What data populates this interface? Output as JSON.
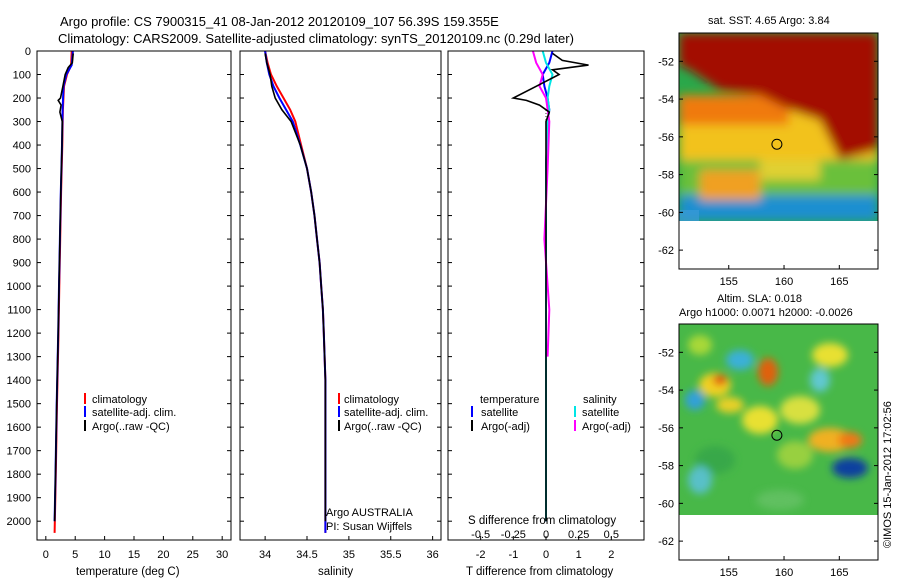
{
  "header": {
    "line1": "Argo profile: CS 7900315_41 08-Jan-2012 20120109_107 56.39S 159.355E",
    "line2": "Climatology: CARS2009. Satellite-adjusted climatology: synTS_20120109.nc (0.29d later)"
  },
  "colors": {
    "red": "#ff0000",
    "blue": "#0000ff",
    "black": "#000000",
    "cyan": "#00e5e5",
    "magenta": "#ff00ff"
  },
  "chart_data": [
    {
      "type": "line",
      "id": "temperature",
      "xlabel": "temperature (deg C)",
      "xlim": [
        -1.5,
        31.5
      ],
      "xticks": [
        0,
        5,
        10,
        15,
        20,
        25,
        30
      ],
      "ylim": [
        0,
        2080
      ],
      "yticks": [
        0,
        100,
        200,
        300,
        400,
        500,
        600,
        700,
        800,
        900,
        1000,
        1100,
        1200,
        1300,
        1400,
        1500,
        1600,
        1700,
        1800,
        1900,
        2000
      ],
      "legend": [
        "climatology",
        "satellite-adj. clim.",
        "Argo(..raw -QC)"
      ],
      "series": [
        {
          "color": "red",
          "depth": [
            0,
            60,
            100,
            150,
            250,
            400,
            600,
            800,
            1000,
            1200,
            1500,
            1800,
            2050
          ],
          "values": [
            4.4,
            4.3,
            3.6,
            3.1,
            2.9,
            2.8,
            2.6,
            2.45,
            2.3,
            2.15,
            1.9,
            1.7,
            1.5
          ]
        },
        {
          "color": "blue",
          "depth": [
            0,
            60,
            100,
            150,
            250,
            400,
            600,
            800,
            1000,
            1200,
            1500,
            1800,
            2000
          ],
          "values": [
            4.6,
            4.4,
            3.5,
            3.0,
            2.85,
            2.75,
            2.55,
            2.4,
            2.25,
            2.1,
            1.85,
            1.65,
            1.5
          ]
        },
        {
          "color": "black",
          "depth": [
            10,
            50,
            70,
            100,
            150,
            200,
            210,
            230,
            260,
            300,
            400,
            600,
            800,
            1000,
            1200,
            1500,
            1800,
            2000
          ],
          "values": [
            4.65,
            4.5,
            3.8,
            3.3,
            2.9,
            2.5,
            2.1,
            2.6,
            2.4,
            2.8,
            2.75,
            2.55,
            2.4,
            2.25,
            2.1,
            1.85,
            1.65,
            1.5
          ]
        }
      ]
    },
    {
      "type": "line",
      "id": "salinity",
      "xlabel": "salinity",
      "xlim": [
        33.7,
        36.1
      ],
      "xticks": [
        34,
        34.5,
        35,
        35.5,
        36
      ],
      "xtick_labels": [
        "34",
        "34.5",
        "35",
        "35.5",
        "36"
      ],
      "ylim": [
        0,
        2080
      ],
      "legend": [
        "climatology",
        "satellite-adj. clim.",
        "Argo(..raw -QC)"
      ],
      "credit": [
        "Argo AUSTRALIA",
        "PI: Susan Wijffels"
      ],
      "series": [
        {
          "color": "red",
          "depth": [
            0,
            50,
            100,
            150,
            200,
            250,
            300,
            400,
            500,
            600,
            700,
            800,
            900,
            1000,
            1100,
            1200,
            1300,
            1400,
            2050
          ],
          "values": [
            34.0,
            34.03,
            34.07,
            34.14,
            34.22,
            34.3,
            34.36,
            34.43,
            34.5,
            34.55,
            34.59,
            34.62,
            34.65,
            34.67,
            34.69,
            34.7,
            34.71,
            34.72,
            34.72
          ]
        },
        {
          "color": "blue",
          "depth": [
            0,
            50,
            100,
            150,
            200,
            250,
            300,
            400,
            500,
            600,
            700,
            800,
            900,
            1000,
            1100,
            1200,
            1300,
            1400,
            2050
          ],
          "values": [
            34.0,
            34.02,
            34.05,
            34.1,
            34.17,
            34.25,
            34.33,
            34.42,
            34.5,
            34.55,
            34.59,
            34.62,
            34.65,
            34.67,
            34.69,
            34.7,
            34.71,
            34.72,
            34.72
          ]
        },
        {
          "color": "black",
          "depth": [
            10,
            50,
            100,
            150,
            200,
            250,
            300,
            400,
            500,
            600,
            700,
            800,
            900,
            1000,
            1100,
            1200,
            1300,
            1400,
            1800,
            2000
          ],
          "values": [
            34.0,
            34.02,
            34.06,
            34.08,
            34.12,
            34.2,
            34.31,
            34.42,
            34.5,
            34.55,
            34.59,
            34.62,
            34.65,
            34.67,
            34.69,
            34.7,
            34.71,
            34.72,
            34.72,
            34.72
          ]
        }
      ]
    },
    {
      "type": "line",
      "id": "differences",
      "xlabel": "T difference from climatology",
      "xlim": [
        -3,
        3
      ],
      "xticks": [
        -2,
        -1,
        0,
        1,
        2
      ],
      "xlabel_s": "S difference from climatology",
      "xticks_s": [
        "-0.5",
        "-0.25",
        "0",
        "0.25",
        "0.5"
      ],
      "ylim": [
        0,
        2080
      ],
      "legend_t_title": "temperature",
      "legend_s_title": "salinity",
      "legend": [
        "satellite",
        "Argo(-adj)",
        "satellite",
        "Argo(-adj)"
      ],
      "series": [
        {
          "color": "blue",
          "depth": [
            0,
            50,
            100,
            150,
            200,
            250,
            300,
            500,
            800,
            1200,
            1600,
            2000
          ],
          "values": [
            0.2,
            0.1,
            -0.1,
            -0.05,
            0.05,
            0.1,
            0.05,
            0.0,
            0.0,
            0.0,
            0.0,
            0.0
          ]
        },
        {
          "color": "cyan",
          "depth": [
            0,
            50,
            100,
            150,
            200,
            250,
            300,
            500,
            800,
            1200,
            1600,
            2000
          ],
          "values": [
            -0.1,
            0.0,
            0.2,
            0.1,
            0.05,
            0.1,
            0.05,
            0.0,
            0.0,
            0.0,
            0.0,
            0.0
          ]
        },
        {
          "color": "magenta",
          "depth": [
            0,
            50,
            100,
            150,
            200,
            300,
            500,
            800,
            1100,
            1300
          ],
          "values": [
            -0.4,
            -0.3,
            -0.1,
            -0.2,
            0.0,
            0.1,
            0.05,
            -0.05,
            0.1,
            0.05
          ]
        },
        {
          "color": "black",
          "depth": [
            10,
            40,
            60,
            80,
            100,
            150,
            200,
            210,
            230,
            260,
            300,
            400,
            600,
            800,
            1000,
            1300,
            1600,
            1900,
            2000
          ],
          "values": [
            0.2,
            0.5,
            1.3,
            0.2,
            0.4,
            -0.3,
            -1.0,
            -0.6,
            -0.2,
            0.1,
            0.0,
            0.0,
            0.0,
            0.0,
            0.0,
            0.0,
            0.0,
            0.0,
            0.0
          ]
        }
      ]
    }
  ],
  "sst_map": {
    "title": "sat. SST: 4.65 Argo: 3.84",
    "yticks": [
      "-52",
      "-54",
      "-56",
      "-58",
      "-60",
      "-62"
    ],
    "xticks": [
      "155",
      "160",
      "165"
    ],
    "xlim": [
      150.5,
      168.5
    ],
    "ylim": [
      -63,
      -50.5
    ]
  },
  "sla_map": {
    "title1": "Altim. SLA: 0.018",
    "title2": "Argo h1000: 0.0071 h2000: -0.0026",
    "yticks": [
      "-52",
      "-54",
      "-56",
      "-58",
      "-60",
      "-62"
    ],
    "xticks": [
      "155",
      "160",
      "165"
    ]
  },
  "argo_position": {
    "lon": 159.355,
    "lat": -56.39
  },
  "footer_credit": "©IMOS 15-Jan-2012 17:02:56"
}
